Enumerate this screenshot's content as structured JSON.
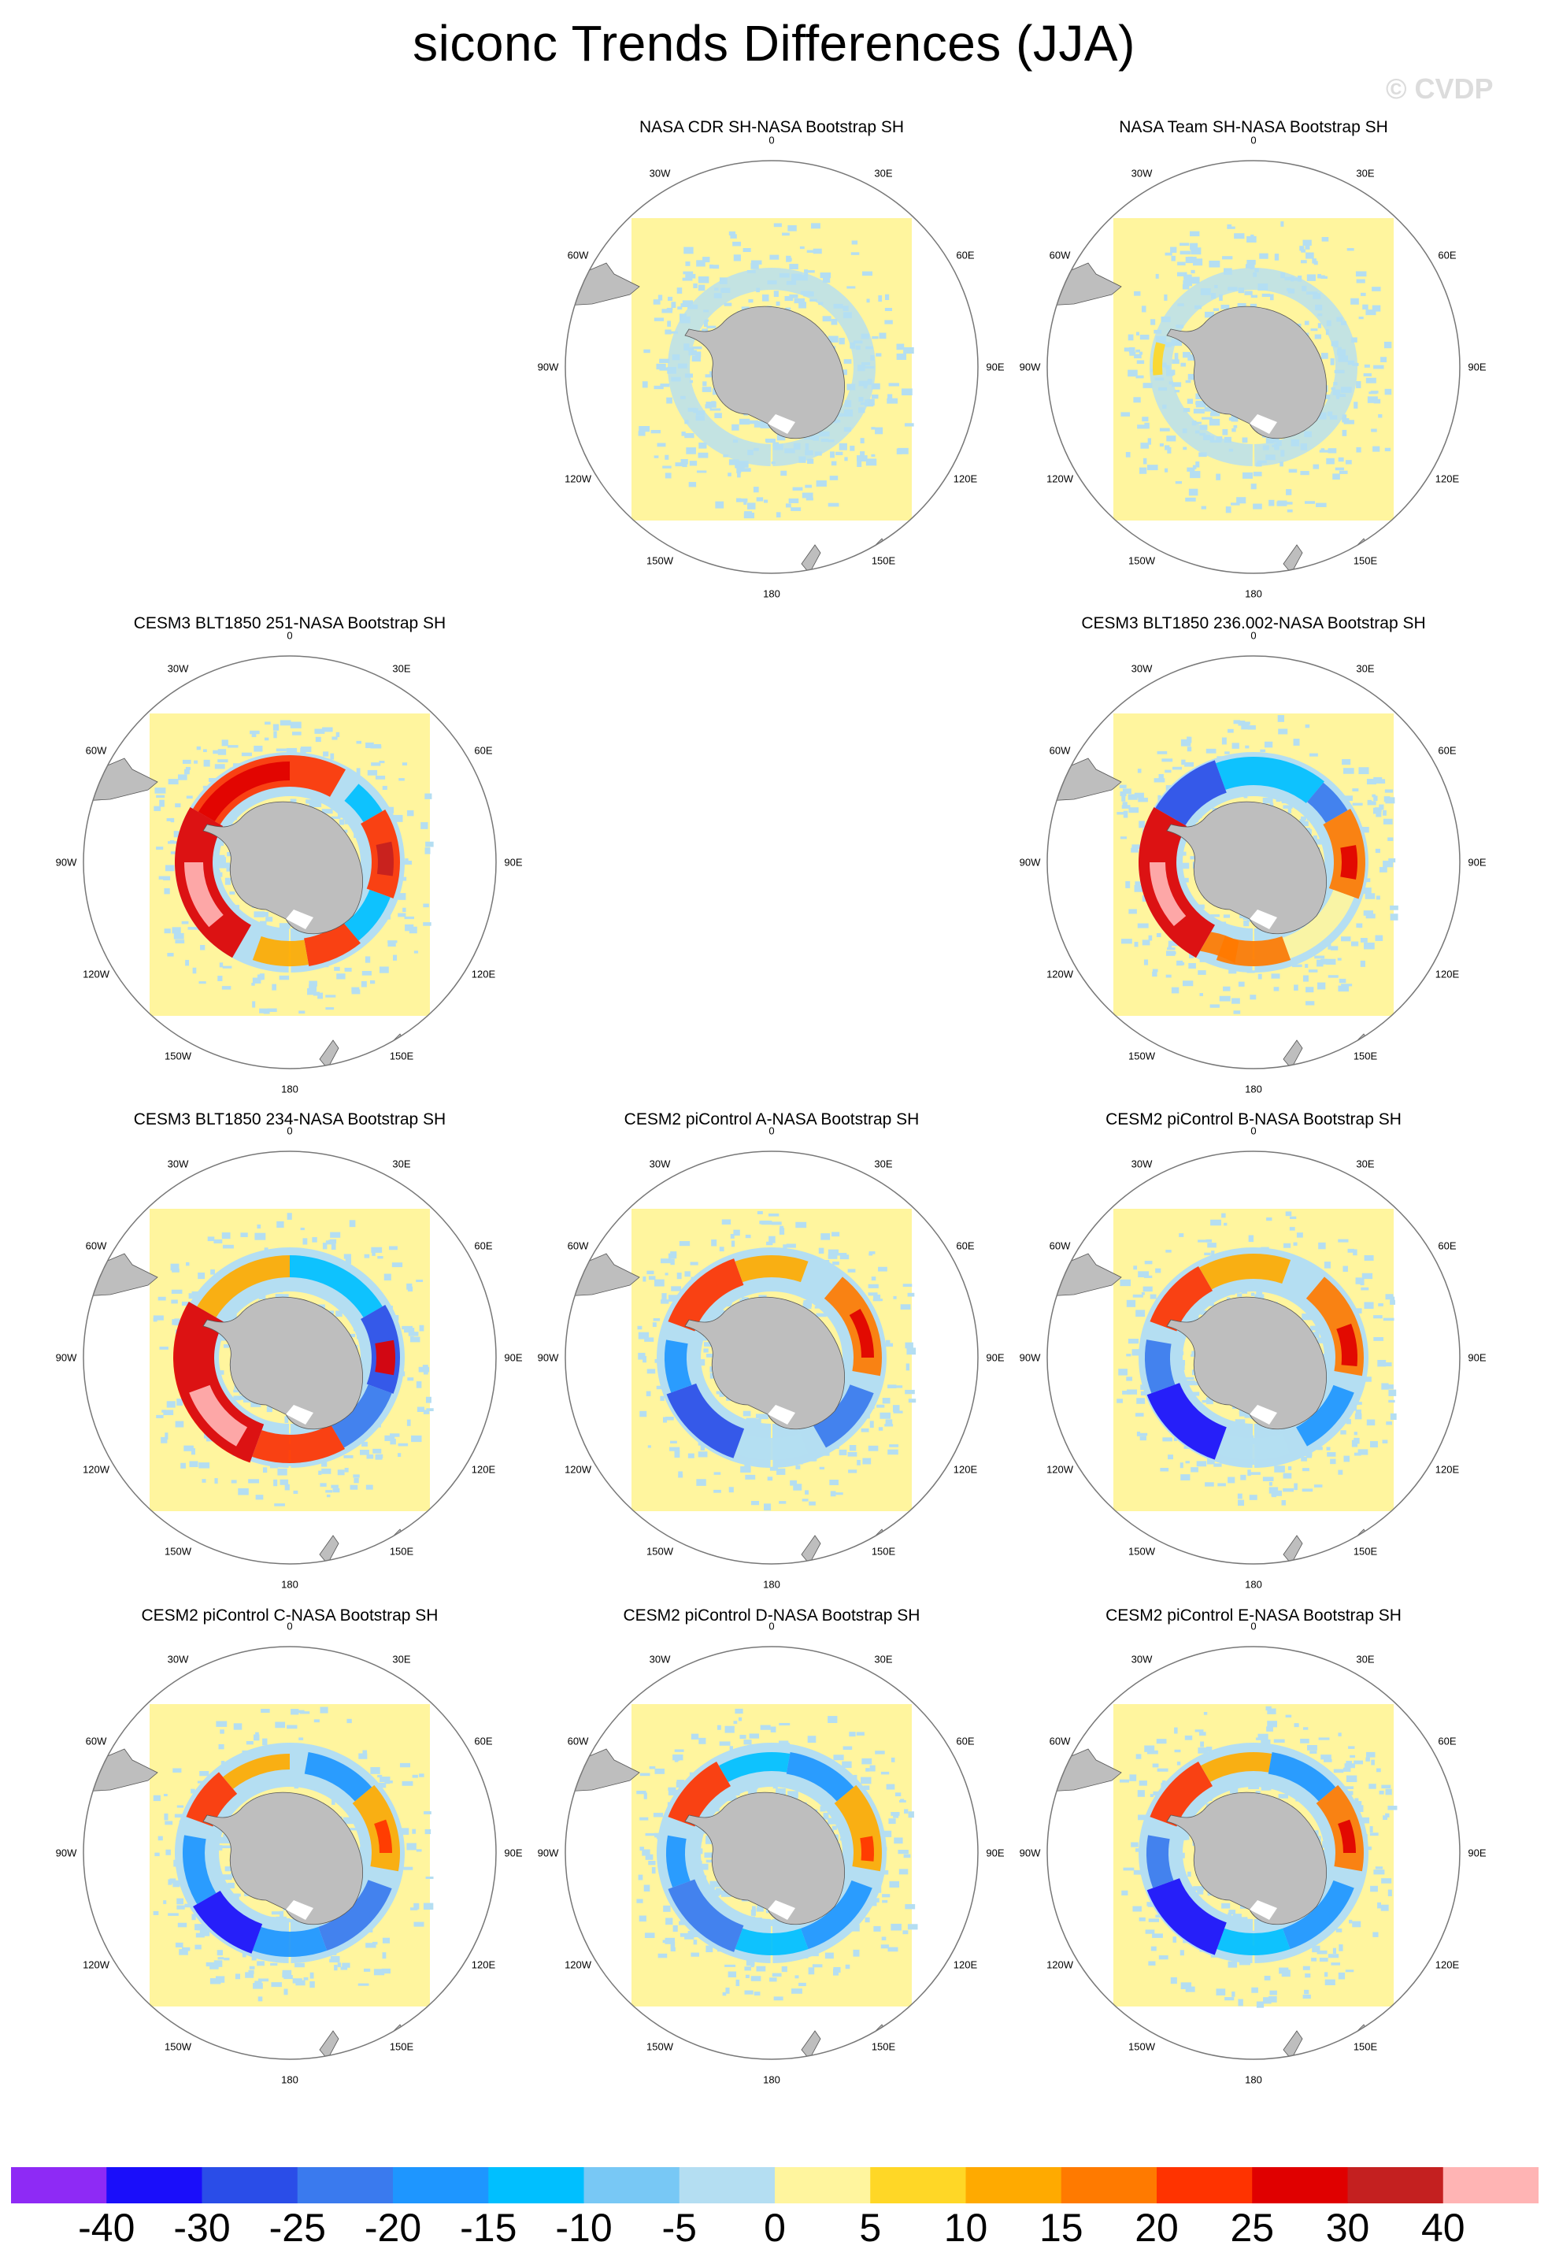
{
  "title": "siconc Trends Differences (JJA)",
  "watermark": "© CVDP",
  "tick_labels": [
    "0",
    "30E",
    "60E",
    "90E",
    "120E",
    "150E",
    "180",
    "150W",
    "120W",
    "90W",
    "60W",
    "30W"
  ],
  "chart_data": {
    "type": "heatmap",
    "projection": "south polar stereographic",
    "variable": "siconc",
    "season": "JJA",
    "colorbar": {
      "levels": [
        "-40",
        "-30",
        "-25",
        "-20",
        "-15",
        "-10",
        "-5",
        "0",
        "5",
        "10",
        "15",
        "20",
        "25",
        "30",
        "40"
      ],
      "colors": [
        "#8E2AF5",
        "#1A0EFA",
        "#2A4DE8",
        "#3A7AEE",
        "#1E96FF",
        "#00BFFF",
        "#78C8F5",
        "#B4DEF2",
        "#FFF59E",
        "#FFD726",
        "#FFAA00",
        "#FF7A00",
        "#FF3300",
        "#E00000",
        "#C42020",
        "#FFB4B4"
      ]
    },
    "panels": [
      {
        "title": "NASA CDR SH-NASA Bootstrap SH",
        "row": 0,
        "col": 1,
        "pattern": "obs1"
      },
      {
        "title": "NASA Team SH-NASA Bootstrap SH",
        "row": 0,
        "col": 2,
        "pattern": "obs2"
      },
      {
        "title": "CESM3 BLT1850 251-NASA Bootstrap SH",
        "row": 1,
        "col": 0,
        "pattern": "blt251"
      },
      {
        "title": "CESM3 BLT1850 236.002-NASA Bootstrap SH",
        "row": 1,
        "col": 2,
        "pattern": "blt236"
      },
      {
        "title": "CESM3 BLT1850 234-NASA Bootstrap SH",
        "row": 2,
        "col": 0,
        "pattern": "blt234"
      },
      {
        "title": "CESM2 piControl A-NASA Bootstrap SH",
        "row": 2,
        "col": 1,
        "pattern": "picA"
      },
      {
        "title": "CESM2 piControl B-NASA Bootstrap SH",
        "row": 2,
        "col": 2,
        "pattern": "picB"
      },
      {
        "title": "CESM2 piControl C-NASA Bootstrap SH",
        "row": 3,
        "col": 0,
        "pattern": "picC"
      },
      {
        "title": "CESM2 piControl D-NASA Bootstrap SH",
        "row": 3,
        "col": 1,
        "pattern": "picD"
      },
      {
        "title": "CESM2 piControl E-NASA Bootstrap SH",
        "row": 3,
        "col": 2,
        "pattern": "picE"
      }
    ]
  }
}
